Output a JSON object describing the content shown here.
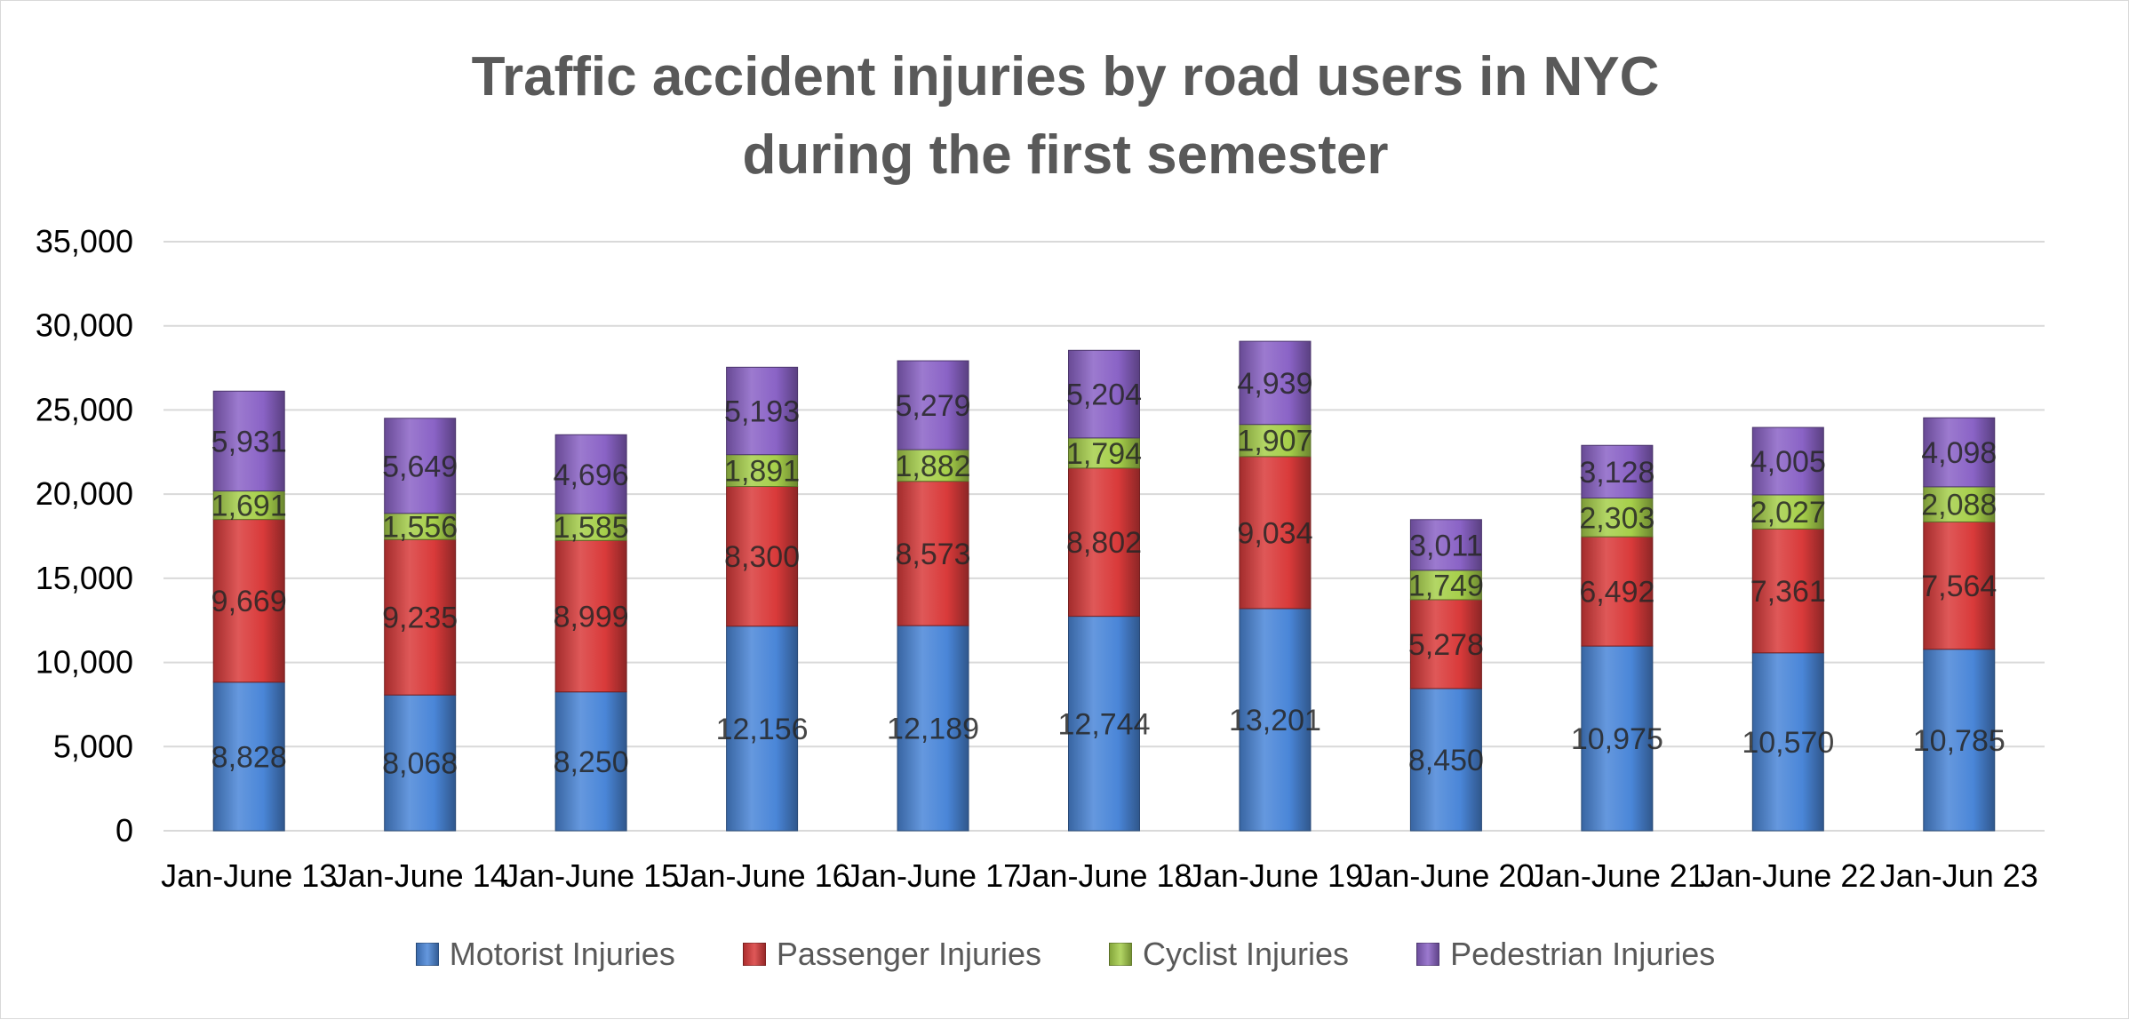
{
  "chart_data": {
    "type": "bar",
    "stacked": true,
    "title_lines": [
      "Traffic accident injuries  by road users in NYC",
      "during the first semester"
    ],
    "xlabel": "",
    "ylabel": "",
    "ylim": [
      0,
      35000
    ],
    "yticks": [
      0,
      5000,
      10000,
      15000,
      20000,
      25000,
      30000,
      35000
    ],
    "ytick_labels": [
      "0",
      "5,000",
      "10,000",
      "15,000",
      "20,000",
      "25,000",
      "30,000",
      "35,000"
    ],
    "grid": true,
    "legend_position": "bottom",
    "categories": [
      "Jan-June 13",
      "Jan-June 14",
      "Jan-June 15",
      "Jan-June 16",
      "Jan-June 17",
      "Jan-June 18",
      "Jan-June 19",
      "Jan-June 20",
      "Jan-June 21",
      "Jan-June 22",
      "Jan-Jun 23"
    ],
    "series": [
      {
        "name": "Motorist Injuries",
        "color": "#4a86d8",
        "values": [
          8828,
          8068,
          8250,
          12156,
          12189,
          12744,
          13201,
          8450,
          10975,
          10570,
          10785
        ],
        "labels": [
          "8,828",
          "8,068",
          "8,250",
          "12,156",
          "12,189",
          "12,744",
          "13,201",
          "8,450",
          "10,975",
          "10,570",
          "10,785"
        ]
      },
      {
        "name": "Passenger Injuries",
        "color": "#d93a3a",
        "values": [
          9669,
          9235,
          8999,
          8300,
          8573,
          8802,
          9034,
          5278,
          6492,
          7361,
          7564
        ],
        "labels": [
          "9,669",
          "9,235",
          "8,999",
          "8,300",
          "8,573",
          "8,802",
          "9,034",
          "5,278",
          "6,492",
          "7,361",
          "7,564"
        ]
      },
      {
        "name": "Cyclist Injuries",
        "color": "#a6cf4a",
        "values": [
          1691,
          1556,
          1585,
          1891,
          1882,
          1794,
          1907,
          1749,
          2303,
          2027,
          2088
        ],
        "labels": [
          "1,691",
          "1,556",
          "1,585",
          "1,891",
          "1,882",
          "1,794",
          "1,907",
          "1,749",
          "2,303",
          "2,027",
          "2,088"
        ]
      },
      {
        "name": "Pedestrian Injuries",
        "color": "#8a63c6",
        "values": [
          5931,
          5649,
          4696,
          5193,
          5279,
          5204,
          4939,
          3011,
          3128,
          4005,
          4098
        ],
        "labels": [
          "5,931",
          "5,649",
          "4,696",
          "5,193",
          "5,279",
          "5,204",
          "4,939",
          "3,011",
          "3,128",
          "4,005",
          "4,098"
        ]
      }
    ]
  }
}
